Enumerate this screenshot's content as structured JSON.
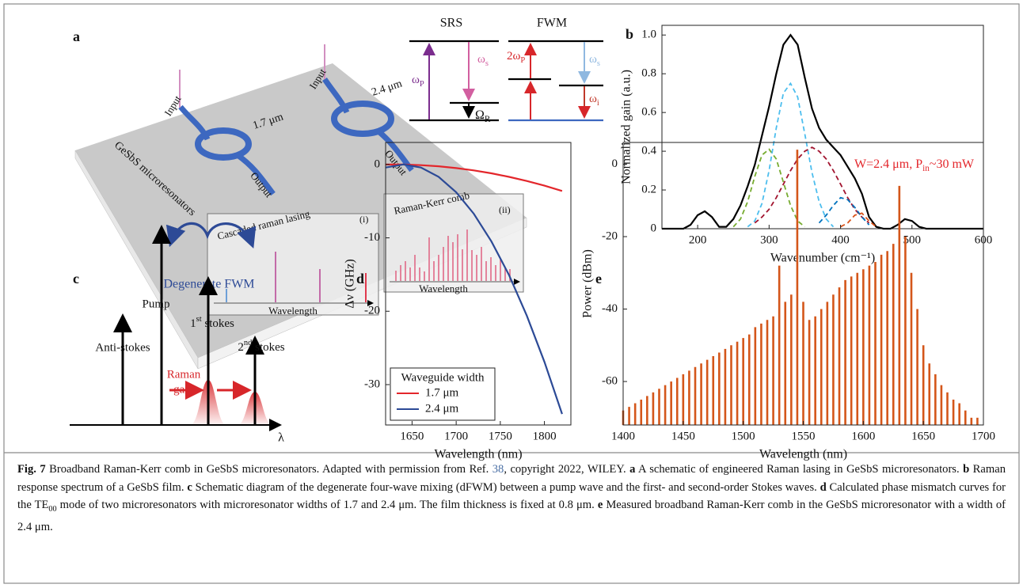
{
  "panel_a": {
    "label": "a",
    "srs": {
      "title": "SRS",
      "pump": [
        {
          "text": "ω"
        },
        {
          "text": "P",
          "style": "sub"
        }
      ],
      "stokes": [
        {
          "text": "ω"
        },
        {
          "text": "s",
          "style": "sub"
        }
      ],
      "raman": [
        {
          "text": "Ω"
        },
        {
          "text": "R",
          "style": "sub"
        }
      ]
    },
    "fwm": {
      "title": "FWM",
      "pump": [
        {
          "text": "2ω"
        },
        {
          "text": "P",
          "style": "sub"
        }
      ],
      "signal": [
        {
          "text": "ω"
        },
        {
          "text": "s",
          "style": "sub"
        }
      ],
      "idler": [
        {
          "text": "ω"
        },
        {
          "text": "i",
          "style": "sub"
        }
      ]
    },
    "input_1": "Input",
    "input_2": "Input",
    "width_1": "1.7 μm",
    "width_2": "2.4 μm",
    "output_1": "Output",
    "output_2": "Output",
    "device": "GeSbS microresonators",
    "inset_1": {
      "title": "Cascaded raman lasing",
      "tag": "(i)",
      "axis": "Wavelength"
    },
    "inset_2": {
      "title": "Raman-Kerr comb",
      "tag": "(ii)",
      "axis": "Wavelength"
    }
  },
  "panel_c": {
    "label": "c",
    "process": "Degenerate FWM",
    "pump": "Pump",
    "stokes_1": [
      {
        "text": "1"
      },
      {
        "text": "st",
        "style": "sup"
      },
      {
        "text": " stokes"
      }
    ],
    "stokes_2": [
      {
        "text": "2"
      },
      {
        "text": "nd",
        "style": "sup"
      },
      {
        "text": " stokes"
      }
    ],
    "anti_stokes": "Anti-stokes",
    "gain": [
      "Raman",
      "gain"
    ],
    "axis": "λ"
  },
  "chart_data": [
    {
      "label": "b",
      "type": "line",
      "xlabel": "Wavenumber (cm⁻¹)",
      "ylabel": "Normalized gain (a.u.)",
      "x": [
        150,
        180,
        190,
        200,
        210,
        220,
        230,
        240,
        250,
        260,
        270,
        280,
        290,
        300,
        310,
        320,
        330,
        340,
        350,
        360,
        370,
        380,
        390,
        400,
        410,
        420,
        430,
        440,
        450,
        460,
        470,
        480,
        490,
        500,
        510,
        520,
        600
      ],
      "series": [
        {
          "color": "#000000",
          "dash": false,
          "values": [
            0,
            0,
            0.02,
            0.07,
            0.09,
            0.06,
            0.01,
            0.01,
            0.05,
            0.12,
            0.22,
            0.33,
            0.48,
            0.63,
            0.8,
            0.95,
            1,
            0.95,
            0.78,
            0.62,
            0.52,
            0.46,
            0.42,
            0.38,
            0.32,
            0.26,
            0.18,
            0.06,
            0.01,
            0,
            0,
            0.02,
            0.05,
            0.04,
            0.01,
            0,
            0
          ]
        },
        {
          "color": "#77ac30",
          "dash": true,
          "values": [
            null,
            null,
            null,
            null,
            null,
            null,
            null,
            null,
            0.01,
            0.05,
            0.14,
            0.27,
            0.38,
            0.41,
            0.36,
            0.24,
            0.12,
            0.04,
            0.01,
            null,
            null,
            null,
            null,
            null,
            null,
            null,
            null,
            null,
            null,
            null,
            null,
            null,
            null,
            null,
            null,
            null,
            null
          ]
        },
        {
          "color": "#4dbeee",
          "dash": true,
          "values": [
            null,
            null,
            null,
            null,
            null,
            null,
            null,
            null,
            null,
            null,
            0.01,
            0.04,
            0.13,
            0.3,
            0.52,
            0.7,
            0.75,
            0.68,
            0.49,
            0.29,
            0.14,
            0.05,
            0.01,
            null,
            null,
            null,
            null,
            null,
            null,
            null,
            null,
            null,
            null,
            null,
            null,
            null,
            null
          ]
        },
        {
          "color": "#a2142f",
          "dash": true,
          "values": [
            null,
            null,
            null,
            null,
            null,
            null,
            null,
            null,
            null,
            null,
            null,
            0.03,
            0.06,
            0.1,
            0.16,
            0.23,
            0.3,
            0.36,
            0.4,
            0.42,
            0.4,
            0.36,
            0.3,
            0.23,
            0.16,
            0.1,
            0.06,
            0.03,
            null,
            null,
            null,
            null,
            null,
            null,
            null,
            null,
            null
          ]
        },
        {
          "color": "#0072bd",
          "dash": true,
          "values": [
            null,
            null,
            null,
            null,
            null,
            null,
            null,
            null,
            null,
            null,
            null,
            null,
            null,
            null,
            null,
            null,
            null,
            null,
            null,
            null,
            0.03,
            0.07,
            0.12,
            0.16,
            0.15,
            0.11,
            0.06,
            0.02,
            null,
            null,
            null,
            null,
            null,
            null,
            null,
            null,
            null
          ]
        },
        {
          "color": "#d95319",
          "dash": true,
          "values": [
            null,
            null,
            null,
            null,
            null,
            null,
            null,
            null,
            null,
            null,
            null,
            null,
            null,
            null,
            null,
            null,
            null,
            null,
            null,
            null,
            null,
            null,
            null,
            0.01,
            0.03,
            0.07,
            0.08,
            0.04,
            0.01,
            null,
            null,
            null,
            null,
            null,
            null,
            null,
            null
          ]
        }
      ],
      "xlim": [
        150,
        600
      ],
      "xticks": [
        200,
        300,
        400,
        500,
        600
      ],
      "ylim": [
        0,
        1.05
      ],
      "yticks": [
        0,
        0.2,
        0.4,
        0.6,
        0.8,
        {
          "value": 1,
          "label": "1.0"
        }
      ]
    },
    {
      "label": "d",
      "type": "line",
      "xlabel": "Wavelength (nm)",
      "ylabel": "Δν (GHz)",
      "x": [
        1620,
        1640,
        1660,
        1680,
        1700,
        1720,
        1740,
        1760,
        1780,
        1800,
        1820
      ],
      "series": [
        {
          "name": "1.7 μm",
          "color": "#e3262b",
          "dash": false,
          "values": [
            -0.01,
            -0.01,
            -0.09,
            -0.25,
            -0.49,
            -0.81,
            -1.21,
            -1.69,
            -2.25,
            -2.89,
            -3.61
          ]
        },
        {
          "name": "2.4 μm",
          "color": "#2c4a96",
          "dash": false,
          "values": [
            -0.42,
            0,
            -0.42,
            -1.68,
            -3.78,
            -6.72,
            -10.5,
            -15.1,
            -20.6,
            -26.9,
            -34
          ]
        }
      ],
      "legend": {
        "title": "Waveguide width",
        "position": "lower left"
      },
      "xlim": [
        1620,
        1830
      ],
      "xticks": [
        1650,
        1700,
        1750,
        1800
      ],
      "ylim": [
        -35.5,
        3
      ],
      "yticks": [
        -30,
        -20,
        -10,
        0
      ]
    },
    {
      "label": "e",
      "type": "stem",
      "xlabel": "Wavelength (nm)",
      "ylabel": "Power (dBm)",
      "annotation": [
        {
          "text": "W=2.4 μm, P"
        },
        {
          "text": "in",
          "style": "sub"
        },
        {
          "text": "~30 mW"
        }
      ],
      "annotation_color": "#e3262b",
      "color": "#d4561a",
      "x": [
        1400,
        1405,
        1410,
        1415,
        1420,
        1425,
        1430,
        1435,
        1440,
        1445,
        1450,
        1455,
        1460,
        1465,
        1470,
        1475,
        1480,
        1485,
        1490,
        1495,
        1500,
        1505,
        1510,
        1515,
        1520,
        1525,
        1530,
        1535,
        1540,
        1545,
        1550,
        1555,
        1560,
        1565,
        1570,
        1575,
        1580,
        1585,
        1590,
        1595,
        1600,
        1605,
        1610,
        1615,
        1620,
        1625,
        1630,
        1635,
        1640,
        1645,
        1650,
        1655,
        1660,
        1665,
        1670,
        1675,
        1680,
        1685,
        1690,
        1695,
        1700
      ],
      "values": [
        -68,
        -67,
        -66,
        -65,
        -64,
        -63,
        -62,
        -61,
        -60,
        -59,
        -58,
        -57,
        -56,
        -55,
        -54,
        -53,
        -52,
        -51,
        -50,
        -49,
        -48,
        -47,
        -45,
        -44,
        -43,
        -42,
        -28,
        -38,
        -36,
        4,
        -38,
        -43,
        -42,
        -40,
        -38,
        -36,
        -34,
        -32,
        -31,
        -30,
        -29,
        -28,
        -27,
        -25,
        -24,
        -22,
        -6,
        -20,
        -30,
        -40,
        -50,
        -55,
        -58,
        -61,
        -63,
        -65,
        -66,
        -68,
        -70,
        -70,
        -72
      ],
      "xlim": [
        1400,
        1700
      ],
      "xticks": [
        1400,
        1450,
        1500,
        1550,
        1600,
        1650,
        1700
      ],
      "ylim": [
        -72,
        6
      ],
      "yticks": [
        -60,
        -40,
        -20,
        0
      ]
    }
  ],
  "caption": [
    {
      "text": "Fig. 7",
      "style": "bold"
    },
    {
      "text": " Broadband Raman-Kerr comb in GeSbS microresonators. Adapted with permission from Ref. "
    },
    {
      "text": "38",
      "style": "link"
    },
    {
      "text": ", copyright 2022, WILEY. "
    },
    {
      "text": "a",
      "style": "bold"
    },
    {
      "text": " A schematic of engineered Raman lasing in GeSbS microresonators. "
    },
    {
      "text": "b",
      "style": "bold"
    },
    {
      "text": " Raman response spectrum of a GeSbS film. "
    },
    {
      "text": "c",
      "style": "bold"
    },
    {
      "text": " Schematic diagram of the degenerate four-wave mixing (dFWM) between a pump wave and the first- and second-order Stokes waves. "
    },
    {
      "text": "d",
      "style": "bold"
    },
    {
      "text": " Calculated phase mismatch curves for the TE"
    },
    {
      "text": "00",
      "style": "sub"
    },
    {
      "text": " mode of two microresonators with microresonator widths of 1.7 and 2.4 μm. The film thickness is fixed at 0.8 μm. "
    },
    {
      "text": "e",
      "style": "bold"
    },
    {
      "text": " Measured broadband Raman-Kerr comb in the GeSbS microresonator with a width of 2.4 μm."
    }
  ]
}
